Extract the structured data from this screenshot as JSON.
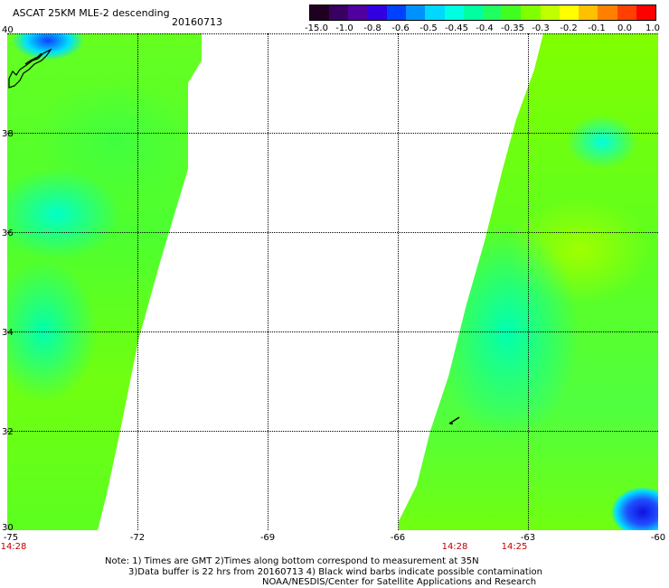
{
  "header": {
    "title": "ASCAT 25KM MLE-2 descending",
    "date": "20160713"
  },
  "colorbar": {
    "colors": [
      "#200020",
      "#380060",
      "#5000a0",
      "#3000e0",
      "#0040ff",
      "#0090ff",
      "#00d8ff",
      "#00ffe0",
      "#00ffa0",
      "#20ff60",
      "#40ff20",
      "#80ff00",
      "#c0ff00",
      "#ffff00",
      "#ffc000",
      "#ff8000",
      "#ff4000",
      "#ff0000"
    ],
    "labels": [
      "-15.0",
      "-1.0",
      "-0.8",
      "-0.6",
      "-0.5",
      "-0.45",
      "-0.4",
      "-0.35",
      "-0.3",
      "-0.2",
      "-0.1",
      "0.0",
      "1.0"
    ]
  },
  "map": {
    "lat_labels": [
      "40",
      "38",
      "36",
      "34",
      "32",
      "30"
    ],
    "lon_labels": [
      "-75",
      "-72",
      "-69",
      "-66",
      "-63",
      "-60"
    ],
    "pass_times": [
      "14:28",
      "14:28",
      "14:25"
    ]
  },
  "footer": {
    "line1": "Note: 1) Times are GMT 2)Times along bottom correspond to measurement at 35N",
    "line2": "3)Data buffer is 22 hrs from 20160713 4) Black wind barbs indicate possible contamination",
    "line3": "NOAA/NESDIS/Center for Satellite Applications and Research"
  }
}
